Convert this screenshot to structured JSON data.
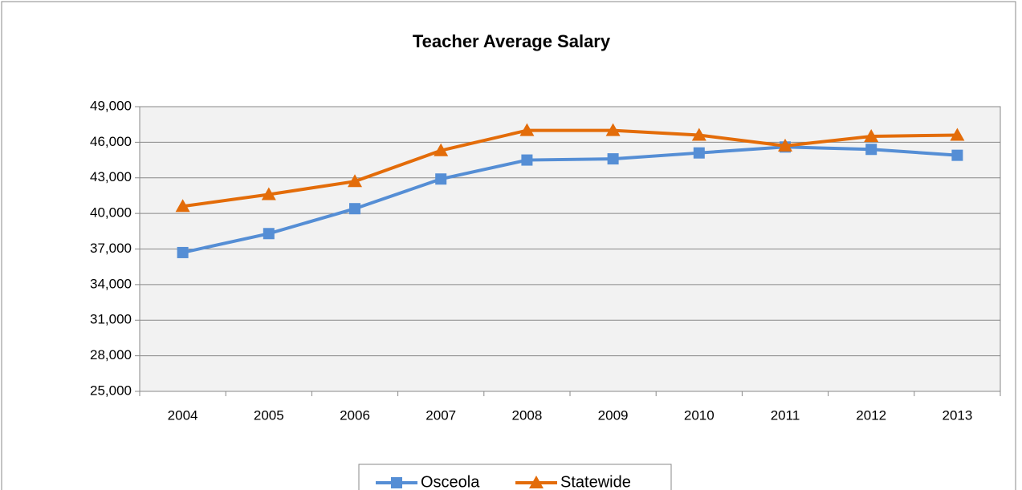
{
  "chart_data": {
    "type": "line",
    "title": "Teacher Average Salary",
    "categories": [
      "2004",
      "2005",
      "2006",
      "2007",
      "2008",
      "2009",
      "2010",
      "2011",
      "2012",
      "2013"
    ],
    "series": [
      {
        "name": "Osceola",
        "color": "#558ed5",
        "marker": "square",
        "values": [
          36700,
          38300,
          40400,
          42900,
          44500,
          44600,
          45100,
          45600,
          45400,
          44900
        ]
      },
      {
        "name": "Statewide",
        "color": "#e36c09",
        "marker": "triangle",
        "values": [
          40600,
          41600,
          42700,
          45300,
          47000,
          47000,
          46600,
          45700,
          46500,
          46600
        ]
      }
    ],
    "ylim": [
      25000,
      49000
    ],
    "yticks": [
      {
        "value": 25000,
        "label": "25,000"
      },
      {
        "value": 28000,
        "label": "28,000"
      },
      {
        "value": 31000,
        "label": "31,000"
      },
      {
        "value": 34000,
        "label": "34,000"
      },
      {
        "value": 37000,
        "label": "37,000"
      },
      {
        "value": 40000,
        "label": "40,000"
      },
      {
        "value": 43000,
        "label": "43,000"
      },
      {
        "value": 46000,
        "label": "46,000"
      },
      {
        "value": 49000,
        "label": "49,000"
      }
    ],
    "grid": true,
    "legend": "bottom"
  }
}
